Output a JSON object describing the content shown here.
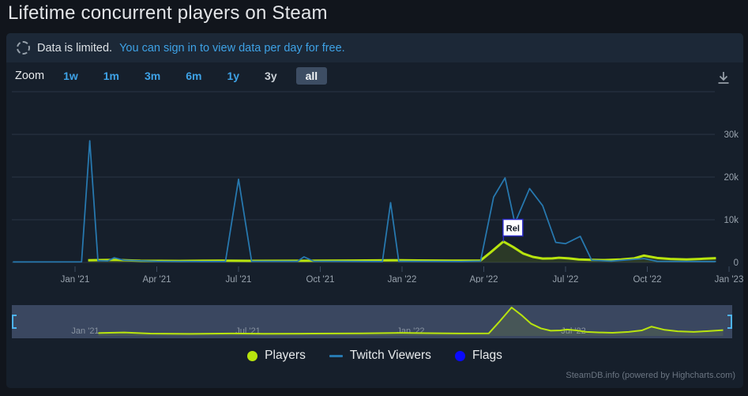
{
  "title": "Lifetime concurrent players on Steam",
  "notice": {
    "text": "Data is limited.",
    "link_text": "You can sign in to view data per day for free."
  },
  "toolbar": {
    "zoom_label": "Zoom",
    "ranges": [
      {
        "label": "1w",
        "style": "link"
      },
      {
        "label": "1m",
        "style": "link"
      },
      {
        "label": "3m",
        "style": "link"
      },
      {
        "label": "6m",
        "style": "link"
      },
      {
        "label": "1y",
        "style": "link"
      },
      {
        "label": "3y",
        "style": "muted"
      },
      {
        "label": "all",
        "style": "active"
      }
    ]
  },
  "colors": {
    "link": "#3ea2e6",
    "players": "#b8e40e",
    "twitch": "#2779b0",
    "flag_blue": "#0a0afc"
  },
  "chart_data": {
    "type": "line",
    "title": "Lifetime concurrent players on Steam",
    "x_axis": {
      "unit": "decimal-year",
      "range": [
        2020.81,
        2022.96
      ],
      "ticks": [
        {
          "t": 2021.0,
          "label": "Jan '21"
        },
        {
          "t": 2021.25,
          "label": "Apr '21"
        },
        {
          "t": 2021.5,
          "label": "Jul '21"
        },
        {
          "t": 2021.75,
          "label": "Oct '21"
        },
        {
          "t": 2022.0,
          "label": "Jan '22"
        },
        {
          "t": 2022.25,
          "label": "Apr '22"
        },
        {
          "t": 2022.5,
          "label": "Jul '22"
        },
        {
          "t": 2022.75,
          "label": "Oct '22"
        },
        {
          "t": 2023.0,
          "label": "Jan '23"
        }
      ]
    },
    "y_axis": {
      "range": [
        0,
        40000
      ],
      "ticks": [
        {
          "v": 0,
          "label": "0"
        },
        {
          "v": 10000,
          "label": "10k"
        },
        {
          "v": 20000,
          "label": "20k"
        },
        {
          "v": 30000,
          "label": "30k"
        },
        {
          "v": 40000,
          "label": ""
        }
      ]
    },
    "series": [
      {
        "name": "Players",
        "color": "#b8e40e",
        "type": "area",
        "points": [
          [
            2021.04,
            500
          ],
          [
            2021.12,
            600
          ],
          [
            2021.2,
            400
          ],
          [
            2021.32,
            350
          ],
          [
            2021.45,
            420
          ],
          [
            2021.55,
            380
          ],
          [
            2021.7,
            400
          ],
          [
            2021.85,
            450
          ],
          [
            2021.97,
            520
          ],
          [
            2022.05,
            470
          ],
          [
            2022.15,
            420
          ],
          [
            2022.24,
            450
          ],
          [
            2022.27,
            2300
          ],
          [
            2022.31,
            4900
          ],
          [
            2022.34,
            3600
          ],
          [
            2022.37,
            2100
          ],
          [
            2022.4,
            1300
          ],
          [
            2022.43,
            900
          ],
          [
            2022.46,
            950
          ],
          [
            2022.48,
            1100
          ],
          [
            2022.51,
            950
          ],
          [
            2022.54,
            700
          ],
          [
            2022.58,
            600
          ],
          [
            2022.62,
            550
          ],
          [
            2022.67,
            700
          ],
          [
            2022.71,
            950
          ],
          [
            2022.74,
            1600
          ],
          [
            2022.78,
            1050
          ],
          [
            2022.82,
            800
          ],
          [
            2022.87,
            700
          ],
          [
            2022.91,
            820
          ],
          [
            2022.96,
            1000
          ]
        ]
      },
      {
        "name": "Twitch Viewers",
        "color": "#2779b0",
        "type": "line",
        "points": [
          [
            2020.81,
            120
          ],
          [
            2021.02,
            150
          ],
          [
            2021.045,
            28500
          ],
          [
            2021.07,
            400
          ],
          [
            2021.1,
            350
          ],
          [
            2021.12,
            1100
          ],
          [
            2021.15,
            500
          ],
          [
            2021.25,
            250
          ],
          [
            2021.46,
            200
          ],
          [
            2021.5,
            19500
          ],
          [
            2021.54,
            250
          ],
          [
            2021.68,
            250
          ],
          [
            2021.7,
            1300
          ],
          [
            2021.73,
            280
          ],
          [
            2021.94,
            200
          ],
          [
            2021.965,
            14000
          ],
          [
            2021.99,
            250
          ],
          [
            2022.18,
            200
          ],
          [
            2022.24,
            300
          ],
          [
            2022.28,
            15300
          ],
          [
            2022.315,
            19800
          ],
          [
            2022.345,
            9200
          ],
          [
            2022.39,
            17300
          ],
          [
            2022.43,
            13300
          ],
          [
            2022.47,
            4700
          ],
          [
            2022.5,
            4400
          ],
          [
            2022.545,
            6100
          ],
          [
            2022.58,
            500
          ],
          [
            2022.64,
            300
          ],
          [
            2022.74,
            900
          ],
          [
            2022.78,
            250
          ],
          [
            2022.96,
            200
          ]
        ]
      }
    ],
    "flags": [
      {
        "t": 2022.31,
        "value": 4900,
        "label": "Rel",
        "color": "#2a2ac8"
      }
    ],
    "navigator": {
      "mask_color": "#3a4760",
      "handle_color": "#4db3f0",
      "labels": [
        {
          "t": 2021.0,
          "label": "Jan '21"
        },
        {
          "t": 2021.5,
          "label": "Jul '21"
        },
        {
          "t": 2022.0,
          "label": "Jan '22"
        },
        {
          "t": 2022.5,
          "label": "Jul '22"
        }
      ]
    }
  },
  "legend": [
    {
      "label": "Players",
      "color": "#b8e40e",
      "marker": "circle"
    },
    {
      "label": "Twitch Viewers",
      "color": "#2779b0",
      "marker": "line"
    },
    {
      "label": "Flags",
      "color": "#0a0afc",
      "marker": "circle"
    }
  ],
  "footer": {
    "credits": "SteamDB.info (powered by Highcharts.com)"
  }
}
